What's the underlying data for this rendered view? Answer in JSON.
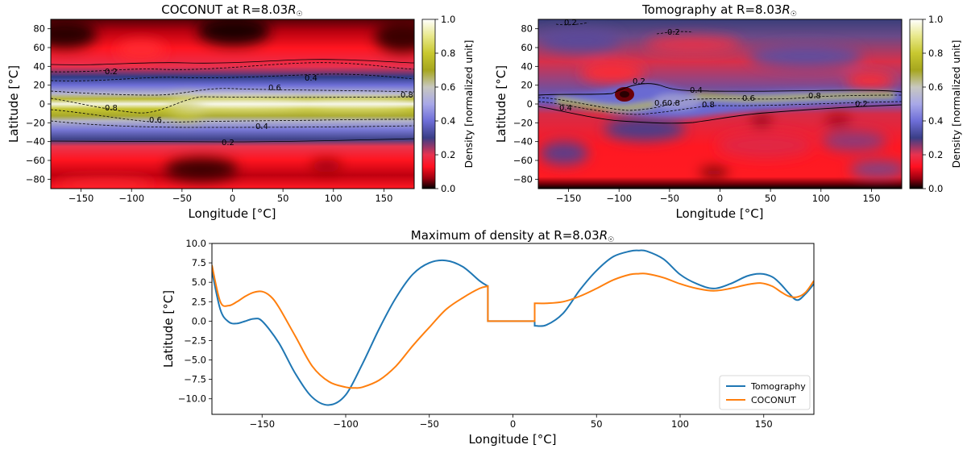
{
  "chart_data": [
    {
      "type": "heatmap",
      "title": "COCONUT at R=8.03R☉",
      "title_parts": {
        "prefix": "COCONUT at R=8.03",
        "rsym": "R",
        "sub": "☉"
      },
      "xlabel": "Longitude [°C]",
      "ylabel": "Latitude [°C]",
      "xlim": [
        -180,
        180
      ],
      "ylim": [
        -90,
        90
      ],
      "xticks": [
        -150,
        -100,
        -50,
        0,
        50,
        100,
        150
      ],
      "yticks": [
        80,
        60,
        40,
        20,
        0,
        -20,
        -40,
        -60,
        -80
      ],
      "colorbar": {
        "label": "Density [normalized unit]",
        "range": [
          0.0,
          1.0
        ],
        "ticks": [
          "0.0",
          "0.2",
          "0.4",
          "0.6",
          "0.8",
          "1.0"
        ]
      },
      "contour_levels": [
        0.2,
        0.4,
        0.6,
        0.8
      ],
      "contour_labels": [
        "0.2",
        "0.4",
        "0.6",
        "0.8",
        "0.8",
        "0.6",
        "0.4",
        "0.2"
      ],
      "current_sheet_latitude": [
        [
          -180,
          3
        ],
        [
          -150,
          4
        ],
        [
          -110,
          -3
        ],
        [
          -90,
          -9
        ],
        [
          -70,
          -5
        ],
        [
          -50,
          4
        ],
        [
          -30,
          6
        ],
        [
          0,
          4
        ],
        [
          50,
          3
        ],
        [
          100,
          3
        ],
        [
          150,
          4
        ],
        [
          180,
          4
        ]
      ]
    },
    {
      "type": "heatmap",
      "title": "Tomography at R=8.03R☉",
      "title_parts": {
        "prefix": "Tomography at R=8.03",
        "rsym": "R",
        "sub": "☉"
      },
      "xlabel": "Longitude [°C]",
      "ylabel": "Latitude [°C]",
      "xlim": [
        -180,
        180
      ],
      "ylim": [
        -90,
        90
      ],
      "xticks": [
        -150,
        -100,
        -50,
        0,
        50,
        100,
        150
      ],
      "yticks": [
        80,
        60,
        40,
        20,
        0,
        -20,
        -40,
        -60,
        -80
      ],
      "colorbar": {
        "label": "Density [normalized unit]",
        "range": [
          0.0,
          1.0
        ],
        "ticks": [
          "0.0",
          "0.2",
          "0.4",
          "0.6",
          "0.8",
          "1.0"
        ]
      },
      "contour_levels": [
        0.2,
        0.4,
        0.6,
        0.8
      ],
      "contour_labels": [
        "0.2",
        "0.2",
        "0.2",
        "0.4",
        "0.60.8",
        "0.8",
        "0.6",
        "0.8",
        "0.2",
        "0.4"
      ]
    },
    {
      "type": "line",
      "title": "Maximum of density at R=8.03R☉",
      "title_parts": {
        "prefix": "Maximum of density at R=8.03",
        "rsym": "R",
        "sub": "☉"
      },
      "xlabel": "Longitude [°C]",
      "ylabel": "Latitude [°C]",
      "xlim": [
        -180,
        180
      ],
      "ylim": [
        -12,
        10
      ],
      "xticks": [
        -150,
        -100,
        -50,
        0,
        50,
        100,
        150
      ],
      "yticks": [
        "10.0",
        "7.5",
        "5.0",
        "2.5",
        "0.0",
        "-2.5",
        "-5.0",
        "-7.5",
        "-10.0"
      ],
      "legend_position": "lower right",
      "series": [
        {
          "name": "Tomography",
          "color": "#1f77b4",
          "x": [
            -180,
            -175,
            -170,
            -165,
            -160,
            -155,
            -150,
            -140,
            -130,
            -120,
            -110,
            -100,
            -90,
            -80,
            -70,
            -60,
            -50,
            -40,
            -30,
            -20,
            -15,
            -15,
            13,
            13,
            20,
            30,
            40,
            50,
            60,
            70,
            75,
            80,
            90,
            100,
            110,
            120,
            130,
            140,
            148,
            155,
            160,
            165,
            170,
            175,
            180
          ],
          "y": [
            6.5,
            1.5,
            -0.1,
            -0.3,
            0.0,
            0.3,
            0.0,
            -2.8,
            -6.8,
            -9.8,
            -10.8,
            -9.5,
            -5.5,
            -1.0,
            3.0,
            6.0,
            7.5,
            7.8,
            7.0,
            5.2,
            4.5,
            0.0,
            0.0,
            -0.6,
            -0.5,
            1.0,
            4.0,
            6.5,
            8.3,
            9.0,
            9.1,
            9.0,
            8.0,
            6.0,
            4.8,
            4.2,
            4.8,
            5.8,
            6.1,
            5.7,
            4.8,
            3.6,
            2.7,
            3.5,
            4.8
          ]
        },
        {
          "name": "COCONUT",
          "color": "#ff7f0e",
          "x": [
            -180,
            -175,
            -170,
            -165,
            -160,
            -155,
            -150,
            -145,
            -140,
            -130,
            -120,
            -110,
            -100,
            -95,
            -90,
            -80,
            -70,
            -60,
            -50,
            -40,
            -30,
            -20,
            -15,
            -15,
            13,
            13,
            20,
            30,
            40,
            50,
            60,
            70,
            75,
            80,
            90,
            100,
            110,
            120,
            130,
            140,
            148,
            155,
            160,
            165,
            170,
            175,
            180
          ],
          "y": [
            7.2,
            2.5,
            2.0,
            2.5,
            3.2,
            3.7,
            3.8,
            3.2,
            1.8,
            -2.0,
            -5.8,
            -7.8,
            -8.5,
            -8.6,
            -8.5,
            -7.6,
            -5.8,
            -3.2,
            -0.8,
            1.5,
            3.0,
            4.2,
            4.5,
            0.0,
            0.0,
            2.3,
            2.3,
            2.5,
            3.2,
            4.2,
            5.3,
            6.0,
            6.1,
            6.1,
            5.6,
            4.8,
            4.2,
            3.9,
            4.2,
            4.7,
            4.9,
            4.5,
            3.8,
            3.2,
            3.1,
            3.7,
            5.2
          ]
        }
      ]
    }
  ]
}
